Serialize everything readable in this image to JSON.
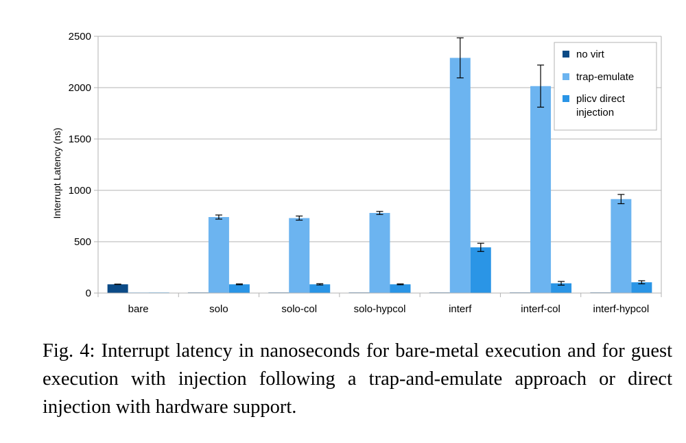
{
  "chart_data": {
    "type": "bar",
    "title": "",
    "xlabel": "",
    "ylabel": "Interrupt Latency (ns)",
    "ylim": [
      0,
      2500
    ],
    "yticks": [
      0,
      500,
      1000,
      1500,
      2000,
      2500
    ],
    "grid": true,
    "legend_position": "top-right",
    "categories": [
      "bare",
      "solo",
      "solo-col",
      "solo-hypcol",
      "interf",
      "interf-col",
      "interf-hypcol"
    ],
    "series": [
      {
        "name": "no virt",
        "color": "#0b4a86",
        "values": [
          85,
          0,
          0,
          0,
          0,
          0,
          0
        ],
        "errors": [
          2,
          0,
          0,
          0,
          0,
          0,
          0
        ]
      },
      {
        "name": "trap-emulate",
        "color": "#6cb4f0",
        "values": [
          0,
          740,
          730,
          780,
          2290,
          2015,
          915
        ],
        "errors": [
          0,
          20,
          20,
          15,
          195,
          205,
          45
        ]
      },
      {
        "name": "plicv direct\ninjection",
        "color": "#2a95e6",
        "values": [
          0,
          85,
          85,
          85,
          445,
          95,
          105
        ],
        "errors": [
          0,
          4,
          6,
          4,
          40,
          18,
          15
        ]
      }
    ]
  },
  "caption": "Fig. 4: Interrupt latency in nanoseconds for bare-metal execution and for guest execution with injection following a trap-and-emulate approach or direct injection with hardware support."
}
